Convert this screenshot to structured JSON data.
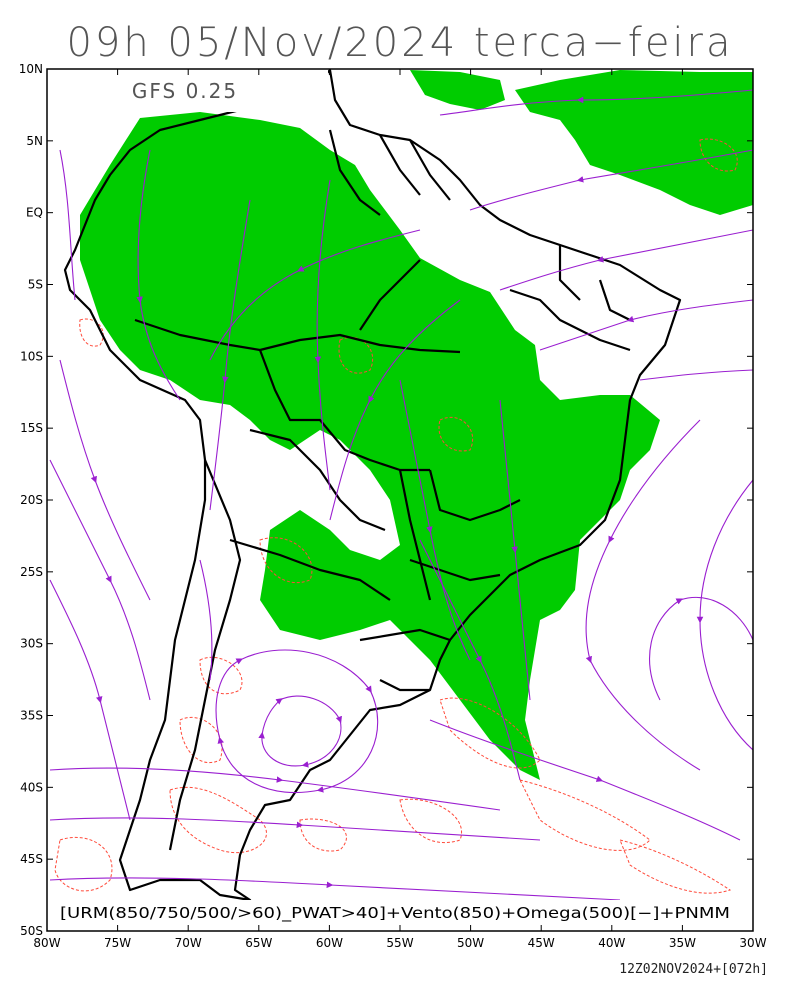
{
  "header": {
    "title": "09h 05/Nov/2024 terca−feira"
  },
  "map": {
    "model_label": "GFS 0.25",
    "legend_text": "[URM(850/750/500/>60)_PWAT>40]+Vento(850)+Omega(500)[−]+PNMM",
    "lat_ticks": [
      "10N",
      "5N",
      "EQ",
      "5S",
      "10S",
      "15S",
      "20S",
      "25S",
      "30S",
      "35S",
      "40S",
      "45S",
      "50S"
    ],
    "lon_ticks": [
      "80W",
      "75W",
      "70W",
      "65W",
      "60W",
      "55W",
      "50W",
      "45W",
      "40W",
      "35W",
      "30W"
    ],
    "colors": {
      "humid_fill": "#00cc00",
      "streamline": "#9a1fd0",
      "omega_contour": "#ff4a3a",
      "border": "#000000"
    }
  },
  "footer": {
    "run_stamp": "12Z02NOV2024+[072h]"
  }
}
